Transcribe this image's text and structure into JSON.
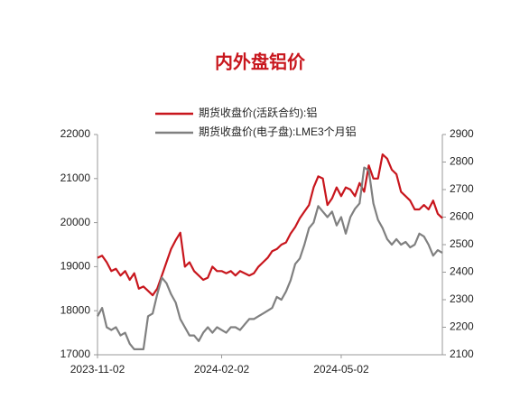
{
  "chart_data": {
    "type": "line",
    "title": "内外盘铝价",
    "categories": [
      "2023-11-02",
      null,
      null,
      null,
      null,
      null,
      null,
      null,
      null,
      null,
      null,
      null,
      null,
      null,
      null,
      null,
      null,
      null,
      null,
      null,
      null,
      null,
      null,
      null,
      null,
      null,
      null,
      "2024-02-02",
      null,
      null,
      null,
      null,
      null,
      null,
      null,
      null,
      null,
      null,
      null,
      null,
      null,
      null,
      null,
      null,
      null,
      null,
      null,
      null,
      null,
      null,
      null,
      null,
      null,
      "2024-05-02",
      null,
      null,
      null,
      null,
      null,
      null,
      null,
      null,
      null,
      null,
      null,
      null,
      null,
      null,
      null,
      null,
      null,
      null,
      null,
      null,
      null,
      null
    ],
    "series": [
      {
        "name": "期货收盘价(活跃合约):铝",
        "color": "#c8161d",
        "values": [
          19200,
          19250,
          19100,
          18900,
          18950,
          18800,
          18900,
          18700,
          18850,
          18500,
          18550,
          18450,
          18350,
          18500,
          18800,
          19100,
          19400,
          19600,
          19770,
          19000,
          19100,
          18900,
          18800,
          18700,
          18750,
          19000,
          18900,
          18900,
          18850,
          18900,
          18800,
          18900,
          18850,
          18800,
          18850,
          19000,
          19100,
          19200,
          19350,
          19400,
          19500,
          19550,
          19750,
          19900,
          20100,
          20250,
          20400,
          20800,
          21050,
          21000,
          20400,
          20550,
          20800,
          20600,
          20800,
          20750,
          20600,
          20900,
          20700,
          21300,
          21000,
          21000,
          21550,
          21450,
          21200,
          21100,
          20700,
          20600,
          20500,
          20300,
          20300,
          20400,
          20300,
          20500,
          20200,
          20100
        ]
      },
      {
        "name": "期货收盘价(电子盘):LME3个月铝",
        "color": "#808080",
        "axis": "y2",
        "values": [
          2240,
          2270,
          2200,
          2190,
          2200,
          2170,
          2180,
          2140,
          2120,
          2120,
          2120,
          2240,
          2250,
          2320,
          2380,
          2360,
          2320,
          2290,
          2230,
          2200,
          2170,
          2170,
          2150,
          2180,
          2200,
          2180,
          2200,
          2190,
          2180,
          2200,
          2200,
          2190,
          2210,
          2230,
          2230,
          2240,
          2250,
          2260,
          2270,
          2310,
          2300,
          2330,
          2370,
          2430,
          2450,
          2500,
          2560,
          2580,
          2640,
          2620,
          2600,
          2620,
          2570,
          2600,
          2540,
          2600,
          2630,
          2650,
          2780,
          2770,
          2650,
          2590,
          2560,
          2520,
          2500,
          2520,
          2500,
          2510,
          2490,
          2500,
          2540,
          2530,
          2500,
          2460,
          2480,
          2470
        ]
      }
    ],
    "ylim": [
      17000,
      22000
    ],
    "yticks": [
      17000,
      18000,
      19000,
      20000,
      21000,
      22000
    ],
    "y2lim": [
      2100,
      2900
    ],
    "y2ticks": [
      2100,
      2200,
      2300,
      2400,
      2500,
      2600,
      2700,
      2800,
      2900
    ],
    "legend": "top"
  }
}
